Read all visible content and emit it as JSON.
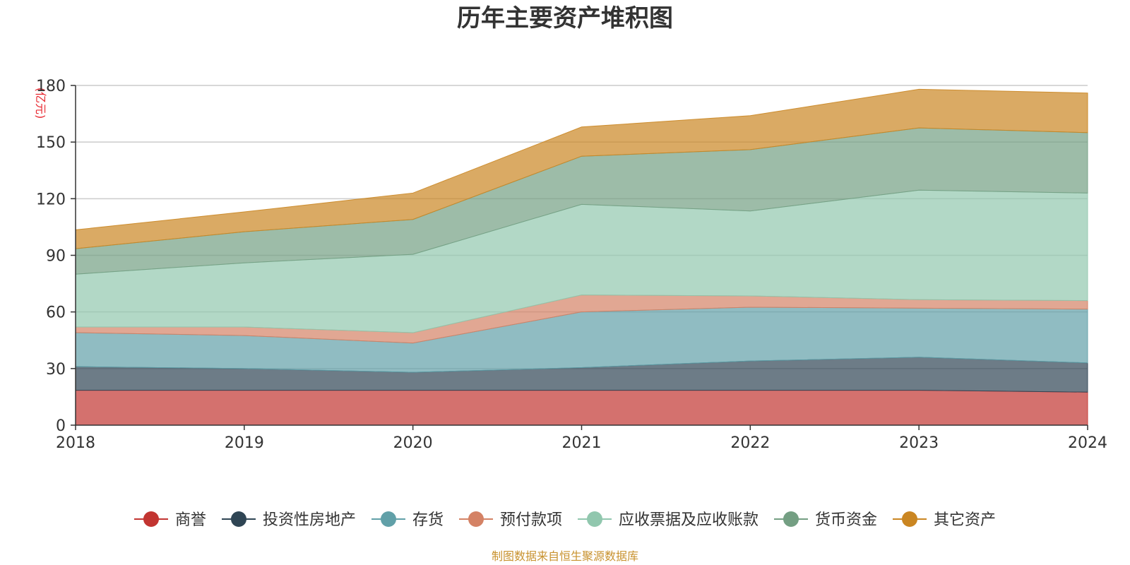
{
  "colors": {
    "unit": "#e8272f",
    "source": "#c8922e",
    "axis": "#333333",
    "grid": "#cccccc"
  },
  "chart_data": {
    "type": "area",
    "stacked": true,
    "title": "历年主要资产堆积图",
    "unit": "(亿元)",
    "source": "制图数据来自恒生聚源数据库",
    "x": [
      "2018",
      "2019",
      "2020",
      "2021",
      "2022",
      "2023",
      "2024"
    ],
    "ylim": [
      0,
      180
    ],
    "yticks": [
      0,
      30,
      60,
      90,
      120,
      150,
      180
    ],
    "grid": true,
    "legend_position": "bottom",
    "series": [
      {
        "name": "商誉",
        "color": "#c23531",
        "values": [
          18.5,
          18.5,
          18.5,
          18.5,
          18.5,
          18.5,
          17.5
        ]
      },
      {
        "name": "投资性房地产",
        "color": "#2f4554",
        "values": [
          12.5,
          11.5,
          9.5,
          12,
          15.5,
          17.5,
          15.5
        ]
      },
      {
        "name": "存货",
        "color": "#61a0a8",
        "values": [
          18,
          17.5,
          15.5,
          29.5,
          28.5,
          26,
          28.5
        ]
      },
      {
        "name": "预付款项",
        "color": "#d48265",
        "values": [
          3,
          4.5,
          5.5,
          9,
          6,
          4.5,
          4.5
        ]
      },
      {
        "name": "应收票据及应收账款",
        "color": "#91c7ae",
        "values": [
          28,
          34,
          41.5,
          48,
          45,
          58,
          57
        ]
      },
      {
        "name": "货币资金",
        "color": "#749f83",
        "values": [
          13.5,
          16.5,
          18.5,
          25.5,
          32.5,
          33,
          32
        ]
      },
      {
        "name": "其它资产",
        "color": "#ca8622",
        "values": [
          10,
          10.5,
          14,
          15.5,
          18,
          20.5,
          21
        ]
      }
    ]
  }
}
